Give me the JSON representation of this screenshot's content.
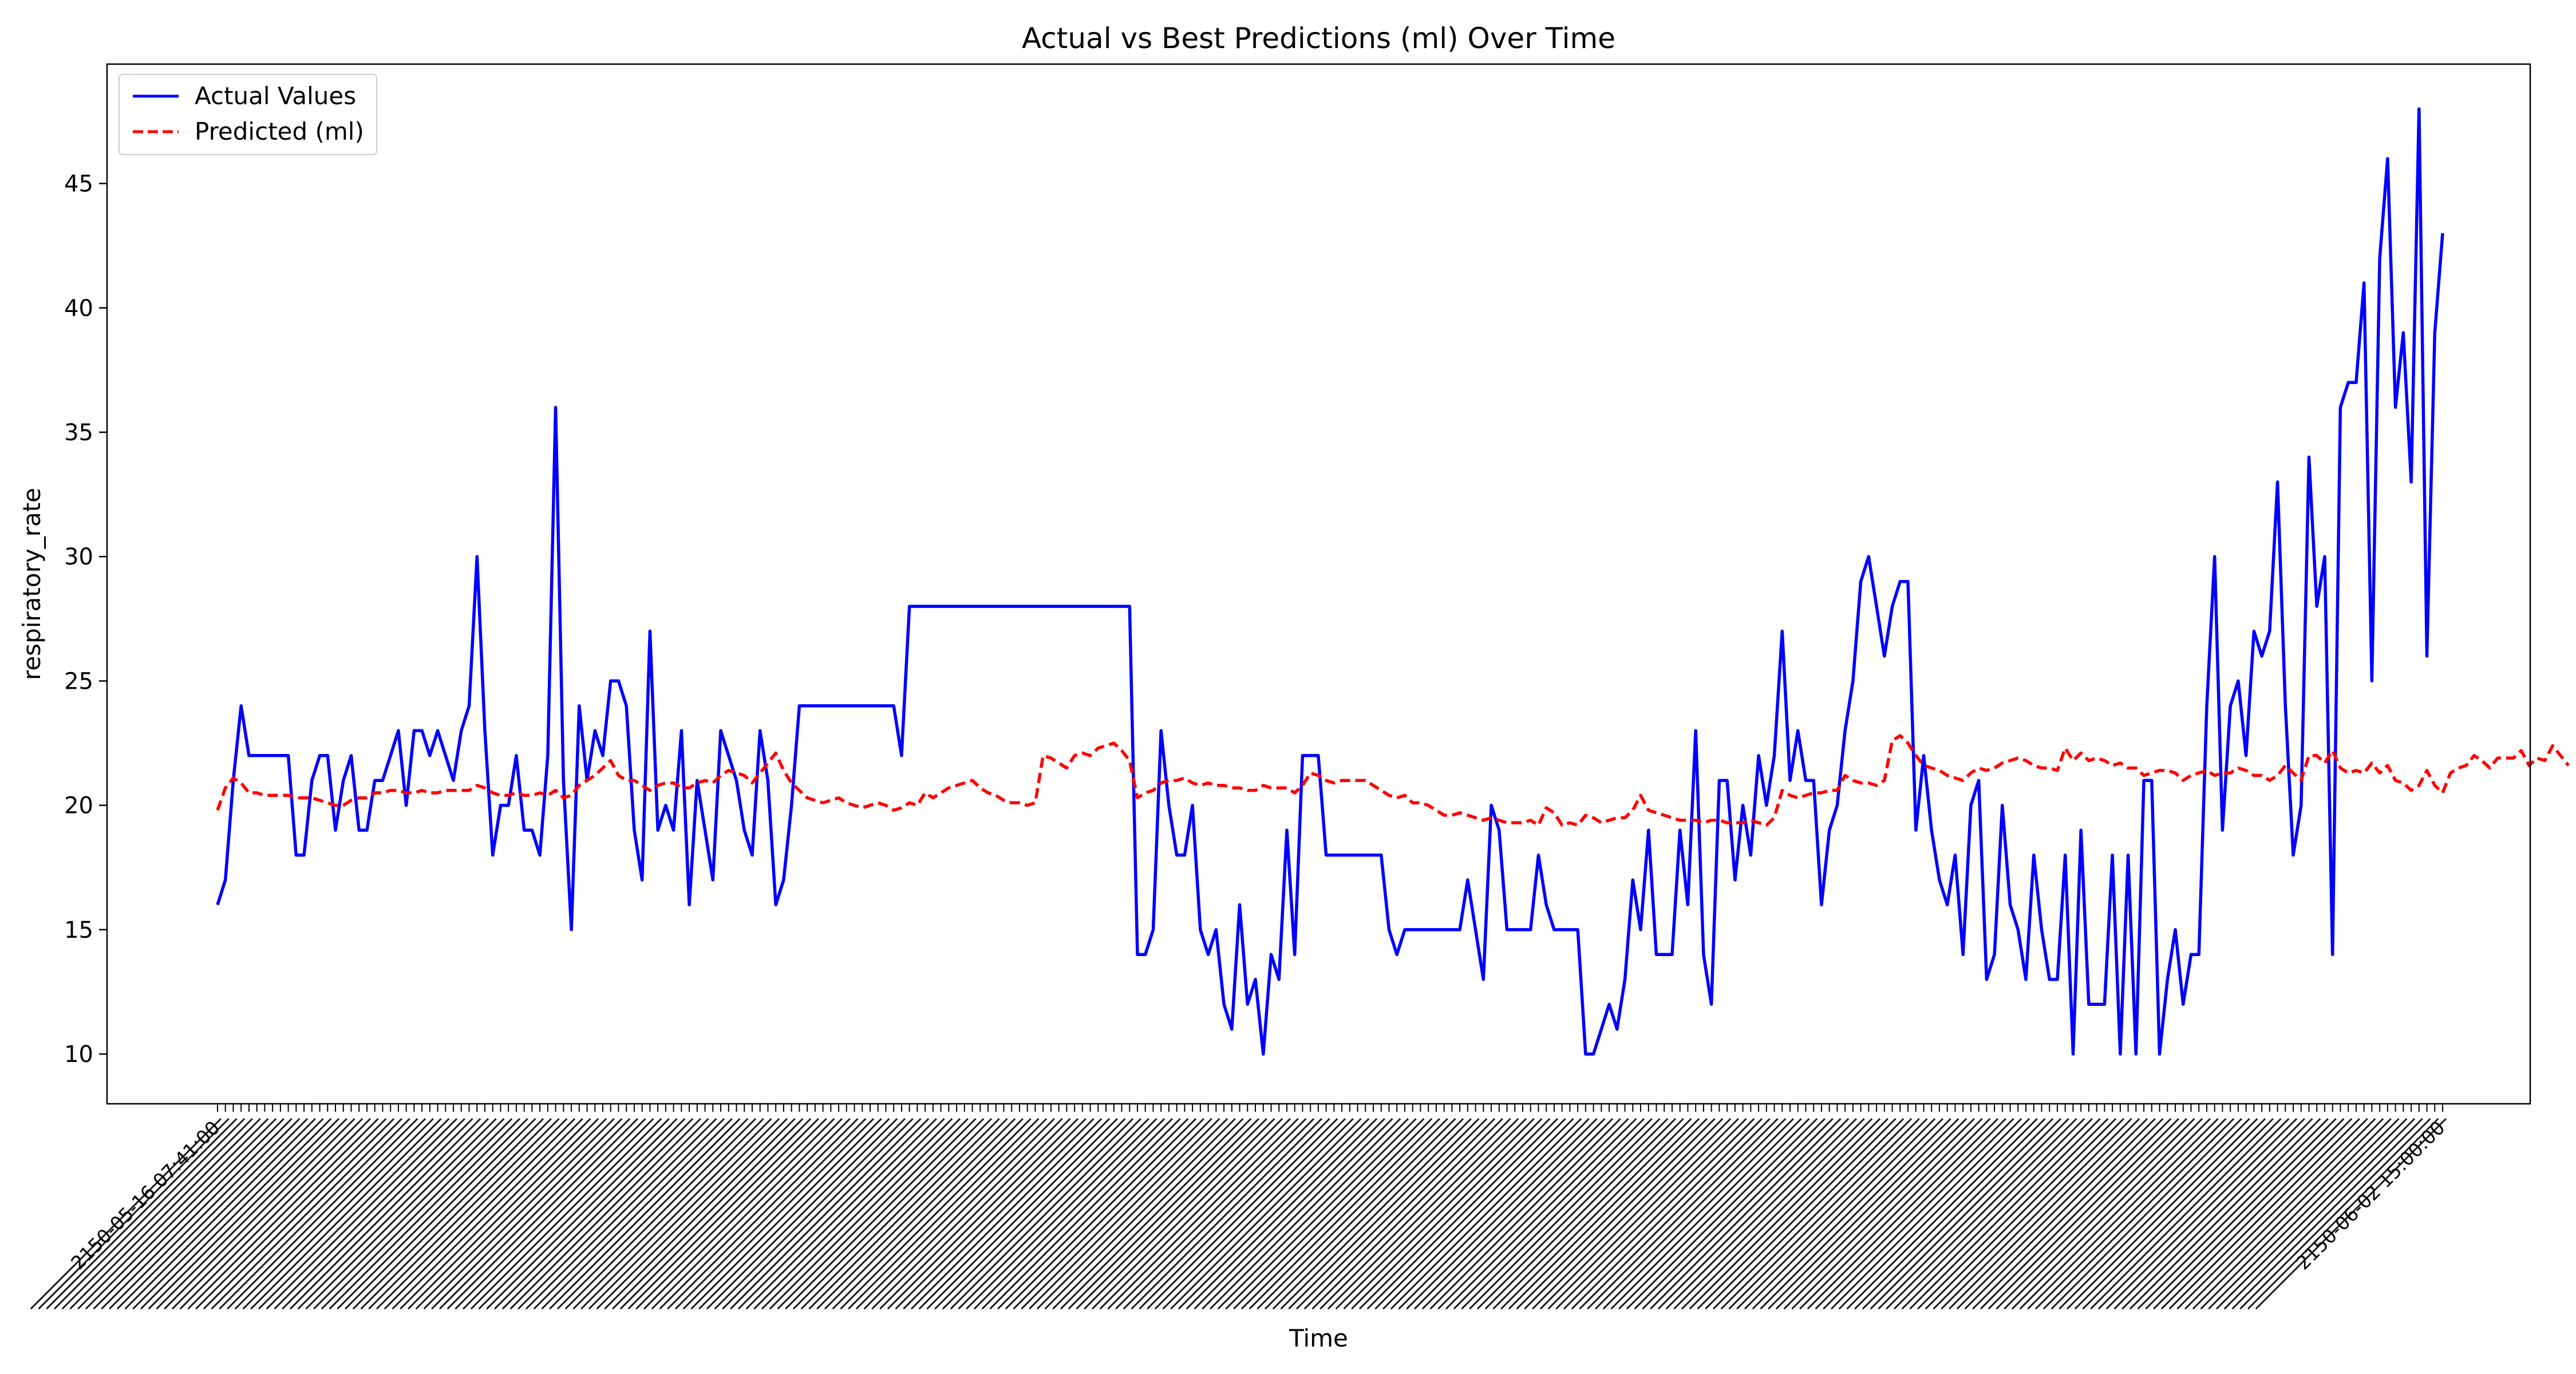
{
  "chart_data": {
    "type": "line",
    "title": "Actual vs Best Predictions (ml) Over Time",
    "xlabel": "Time",
    "ylabel": "respiratory_rate",
    "ylim": [
      8.0,
      49.8
    ],
    "yticks": [
      10,
      15,
      20,
      25,
      30,
      35,
      40,
      45
    ],
    "grid": false,
    "legend_position": "upper-left",
    "x_tick_labels_note": "2150-05-16 … 2150-06-02 timestamps, rotated 45°, heavily overlapping",
    "first_tick_label": "2150-05-16 07:41:00",
    "last_tick_label": "2150-06-02 15:00:00",
    "colors": {
      "actual": "#0000ff",
      "predicted": "#ff0000"
    },
    "series": [
      {
        "name": "Actual Values",
        "style": "solid",
        "values": [
          16,
          17,
          21,
          24,
          22,
          22,
          22,
          22,
          22,
          22,
          18,
          18,
          21,
          22,
          22,
          19,
          21,
          22,
          19,
          19,
          21,
          21,
          22,
          23,
          20,
          23,
          23,
          22,
          23,
          22,
          21,
          23,
          24,
          30,
          23,
          18,
          20,
          20,
          22,
          19,
          19,
          18,
          22,
          36,
          21,
          15,
          24,
          21,
          23,
          22,
          25,
          25,
          24,
          19,
          17,
          27,
          19,
          20,
          19,
          23,
          16,
          21,
          19,
          17,
          23,
          22,
          21,
          19,
          18,
          23,
          21,
          16,
          17,
          20,
          24,
          24,
          24,
          24,
          24,
          24,
          24,
          24,
          24,
          24,
          24,
          24,
          24,
          22,
          28,
          28,
          28,
          28,
          28,
          28,
          28,
          28,
          28,
          28,
          28,
          28,
          28,
          28,
          28,
          28,
          28,
          28,
          28,
          28,
          28,
          28,
          28,
          28,
          28,
          28,
          28,
          28,
          28,
          14,
          14,
          15,
          23,
          20,
          18,
          18,
          20,
          15,
          14,
          15,
          12,
          11,
          16,
          12,
          13,
          10,
          14,
          13,
          19,
          14,
          22,
          22,
          22,
          18,
          18,
          18,
          18,
          18,
          18,
          18,
          18,
          15,
          14,
          15,
          15,
          15,
          15,
          15,
          15,
          15,
          15,
          17,
          15,
          13,
          20,
          19,
          15,
          15,
          15,
          15,
          18,
          16,
          15,
          15,
          15,
          15,
          10,
          10,
          11,
          12,
          11,
          13,
          17,
          15,
          19,
          14,
          14,
          14,
          19,
          16,
          23,
          14,
          12,
          21,
          21,
          17,
          20,
          18,
          22,
          20,
          22,
          27,
          21,
          23,
          21,
          21,
          16,
          19,
          20,
          23,
          25,
          29,
          30,
          28,
          26,
          28,
          29,
          29,
          19,
          22,
          19,
          17,
          16,
          18,
          14,
          20,
          21,
          13,
          14,
          20,
          16,
          15,
          13,
          18,
          15,
          13,
          13,
          18,
          10,
          19,
          12,
          12,
          12,
          18,
          10,
          18,
          10,
          21,
          21,
          10,
          13,
          15,
          12,
          14,
          14,
          24,
          30,
          19,
          24,
          25,
          22,
          27,
          26,
          27,
          33,
          24,
          18,
          20,
          34,
          28,
          30,
          14,
          36,
          37,
          37,
          41,
          25,
          42,
          46,
          36,
          39,
          33,
          48,
          26,
          39,
          43
        ]
      },
      {
        "name": "Predicted (ml)",
        "style": "dashed",
        "values": [
          19.8,
          20.7,
          21.1,
          20.9,
          20.5,
          20.5,
          20.4,
          20.4,
          20.4,
          20.4,
          20.3,
          20.3,
          20.3,
          20.2,
          20.1,
          20.0,
          20.0,
          20.2,
          20.3,
          20.3,
          20.5,
          20.5,
          20.6,
          20.6,
          20.5,
          20.5,
          20.6,
          20.5,
          20.5,
          20.6,
          20.6,
          20.6,
          20.6,
          20.8,
          20.7,
          20.5,
          20.4,
          20.4,
          20.5,
          20.4,
          20.4,
          20.5,
          20.4,
          20.6,
          20.3,
          20.4,
          20.8,
          21.0,
          21.2,
          21.5,
          21.8,
          21.2,
          21.0,
          21.0,
          20.8,
          20.6,
          20.8,
          20.9,
          20.9,
          20.7,
          20.7,
          20.9,
          21.0,
          20.9,
          21.2,
          21.4,
          21.3,
          21.2,
          20.9,
          21.3,
          21.7,
          22.1,
          21.4,
          20.9,
          20.6,
          20.3,
          20.2,
          20.1,
          20.2,
          20.3,
          20.1,
          20.0,
          19.9,
          20.0,
          20.1,
          20.0,
          19.8,
          19.9,
          20.1,
          20.0,
          20.5,
          20.3,
          20.5,
          20.7,
          20.8,
          20.9,
          21.0,
          20.7,
          20.5,
          20.4,
          20.2,
          20.1,
          20.1,
          20.0,
          20.1,
          22.0,
          21.9,
          21.7,
          21.5,
          22.0,
          22.1,
          22.0,
          22.3,
          22.4,
          22.5,
          22.2,
          21.8,
          20.3,
          20.5,
          20.6,
          20.9,
          21.0,
          21.0,
          21.1,
          20.9,
          20.8,
          20.9,
          20.8,
          20.8,
          20.7,
          20.7,
          20.6,
          20.6,
          20.8,
          20.7,
          20.7,
          20.7,
          20.5,
          20.8,
          21.3,
          21.2,
          21.0,
          20.9,
          21.0,
          21.0,
          21.0,
          21.0,
          20.8,
          20.6,
          20.4,
          20.3,
          20.4,
          20.1,
          20.1,
          20.0,
          19.8,
          19.6,
          19.6,
          19.7,
          19.6,
          19.5,
          19.4,
          19.5,
          19.4,
          19.3,
          19.3,
          19.3,
          19.4,
          19.2,
          19.9,
          19.7,
          19.2,
          19.3,
          19.2,
          19.6,
          19.5,
          19.3,
          19.4,
          19.5,
          19.5,
          19.8,
          20.4,
          19.8,
          19.7,
          19.6,
          19.5,
          19.4,
          19.4,
          19.4,
          19.3,
          19.4,
          19.4,
          19.3,
          19.3,
          19.3,
          19.4,
          19.3,
          19.2,
          19.5,
          20.6,
          20.4,
          20.3,
          20.4,
          20.5,
          20.5,
          20.6,
          20.6,
          21.2,
          21.0,
          20.9,
          20.9,
          20.8,
          21.0,
          22.6,
          22.8,
          22.5,
          22.0,
          21.6,
          21.5,
          21.4,
          21.2,
          21.1,
          21.0,
          21.3,
          21.5,
          21.4,
          21.5,
          21.7,
          21.8,
          21.9,
          21.8,
          21.6,
          21.5,
          21.5,
          21.4,
          22.3,
          21.8,
          22.1,
          21.8,
          21.9,
          21.8,
          21.6,
          21.7,
          21.5,
          21.5,
          21.2,
          21.3,
          21.4,
          21.4,
          21.3,
          21.0,
          21.2,
          21.3,
          21.4,
          21.2,
          21.3,
          21.3,
          21.5,
          21.4,
          21.2,
          21.2,
          21.0,
          21.2,
          21.6,
          21.3,
          21.0,
          22.0,
          22.0,
          21.7,
          22.2,
          21.5,
          21.3,
          21.4,
          21.3,
          21.7,
          21.3,
          21.6,
          21.0,
          20.9,
          20.6,
          20.8,
          21.4,
          20.8,
          20.5,
          21.3,
          21.5,
          21.6,
          22.0,
          21.8,
          21.5,
          21.9,
          21.9,
          21.9,
          22.2,
          21.6,
          21.9,
          21.8,
          22.4,
          22.0,
          21.6
        ]
      }
    ]
  }
}
